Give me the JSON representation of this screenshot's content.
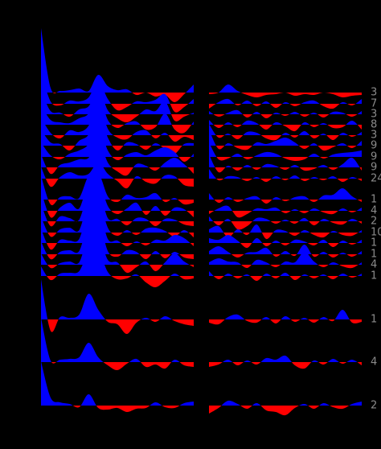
{
  "chart_data": {
    "type": "ridge",
    "colors": {
      "positive": "#0000ff",
      "negative": "#ff0000"
    },
    "rows": [
      {
        "label": 3,
        "left": [
          80,
          6,
          2,
          3,
          5,
          2,
          22,
          8,
          3,
          4,
          -3,
          0,
          -5,
          -3,
          -12,
          -2,
          10
        ],
        "right": [
          -2,
          0,
          10,
          2,
          -3,
          -6,
          -3,
          -2,
          0,
          -4,
          -2,
          -3,
          0,
          -2,
          -6,
          -4,
          -3
        ]
      },
      {
        "label": 7,
        "left": [
          40,
          3,
          -2,
          4,
          3,
          8,
          28,
          6,
          -8,
          -4,
          3,
          2,
          5,
          12,
          -10,
          -4,
          6
        ],
        "right": [
          -6,
          2,
          6,
          -2,
          4,
          -3,
          3,
          -5,
          2,
          -3,
          2,
          4,
          -3,
          -6,
          2,
          -2,
          6
        ]
      },
      {
        "label": 3,
        "left": [
          30,
          4,
          2,
          -3,
          6,
          10,
          32,
          5,
          -5,
          -10,
          -3,
          6,
          4,
          16,
          -8,
          -3,
          2
        ],
        "right": [
          4,
          -3,
          2,
          5,
          -4,
          3,
          -5,
          2,
          -2,
          3,
          -3,
          2,
          -4,
          3,
          2,
          -3,
          4
        ]
      },
      {
        "label": 8,
        "left": [
          25,
          6,
          3,
          2,
          8,
          14,
          38,
          6,
          -4,
          2,
          4,
          -6,
          -3,
          14,
          -6,
          -10,
          4
        ],
        "right": [
          6,
          -4,
          3,
          -3,
          5,
          2,
          -6,
          3,
          -2,
          -8,
          3,
          -3,
          2,
          -4,
          -3,
          5,
          -6
        ]
      },
      {
        "label": 3,
        "left": [
          22,
          3,
          -4,
          6,
          4,
          12,
          42,
          8,
          -3,
          -5,
          4,
          6,
          -4,
          3,
          -8,
          -2,
          -6
        ],
        "right": [
          14,
          -3,
          2,
          -5,
          4,
          3,
          -4,
          -6,
          3,
          -3,
          5,
          -4,
          2,
          -6,
          3,
          -2,
          4
        ]
      },
      {
        "label": 9,
        "left": [
          20,
          4,
          2,
          -6,
          6,
          14,
          44,
          10,
          -6,
          4,
          2,
          -5,
          3,
          -4,
          -10,
          2,
          3
        ],
        "right": [
          20,
          -4,
          3,
          -3,
          -5,
          4,
          2,
          6,
          10,
          4,
          -4,
          3,
          -6,
          -2,
          3,
          -3,
          6
        ]
      },
      {
        "label": 9,
        "left": [
          18,
          2,
          -3,
          4,
          8,
          16,
          40,
          8,
          -4,
          3,
          6,
          2,
          8,
          12,
          6,
          -6,
          4
        ],
        "right": [
          18,
          -3,
          -2,
          4,
          -3,
          2,
          6,
          4,
          -2,
          -5,
          -3,
          4,
          -2,
          3,
          5,
          6,
          8
        ]
      },
      {
        "label": 9,
        "left": [
          16,
          -8,
          3,
          6,
          10,
          12,
          34,
          6,
          -5,
          -10,
          4,
          2,
          -4,
          6,
          12,
          4,
          -8
        ],
        "right": [
          16,
          -6,
          2,
          -4,
          3,
          -3,
          4,
          2,
          -3,
          3,
          -4,
          -2,
          3,
          -3,
          4,
          12,
          -4
        ]
      },
      {
        "label": 24,
        "left": [
          15,
          -10,
          2,
          8,
          4,
          6,
          20,
          6,
          -3,
          -12,
          3,
          -4,
          -6,
          4,
          3,
          -8,
          -10
        ],
        "right": [
          12,
          -2,
          3,
          2,
          -3,
          2,
          -4,
          3,
          -2,
          4,
          -3,
          2,
          -2,
          3,
          -4,
          2,
          -3
        ]
      },
      {
        "label": 1,
        "left": [
          30,
          -6,
          3,
          4,
          2,
          30,
          34,
          4,
          -3,
          6,
          2,
          3,
          8,
          -3,
          2,
          -6,
          -4
        ],
        "right": [
          8,
          -4,
          3,
          -3,
          2,
          4,
          -5,
          3,
          -2,
          3,
          4,
          -3,
          5,
          6,
          14,
          4,
          -3
        ]
      },
      {
        "label": 4,
        "left": [
          25,
          -8,
          4,
          10,
          3,
          36,
          40,
          6,
          -4,
          3,
          10,
          -5,
          6,
          -6,
          4,
          2,
          -8
        ],
        "right": [
          -4,
          3,
          6,
          -8,
          -4,
          3,
          2,
          4,
          -3,
          2,
          -3,
          3,
          -2,
          -4,
          3,
          -2,
          4
        ]
      },
      {
        "label": 2,
        "left": [
          22,
          -6,
          6,
          4,
          2,
          38,
          42,
          4,
          3,
          -5,
          4,
          3,
          -6,
          3,
          2,
          -4,
          -6
        ],
        "right": [
          6,
          -5,
          3,
          -10,
          -6,
          4,
          3,
          -3,
          2,
          -3,
          4,
          -5,
          3,
          -2,
          -4,
          3,
          -3
        ]
      },
      {
        "label": 10,
        "left": [
          20,
          -5,
          4,
          6,
          3,
          40,
          44,
          6,
          -4,
          3,
          -3,
          5,
          6,
          2,
          -5,
          3,
          -6
        ],
        "right": [
          4,
          8,
          -6,
          4,
          -3,
          10,
          -8,
          3,
          2,
          -4,
          3,
          -3,
          -6,
          2,
          -3,
          -4,
          3
        ]
      },
      {
        "label": 1,
        "left": [
          18,
          -8,
          4,
          3,
          5,
          42,
          46,
          5,
          3,
          -4,
          2,
          -3,
          4,
          3,
          10,
          6,
          -4
        ],
        "right": [
          6,
          4,
          10,
          3,
          -6,
          6,
          -4,
          3,
          -3,
          4,
          2,
          -3,
          4,
          -5,
          3,
          -2,
          4
        ]
      },
      {
        "label": 1,
        "left": [
          16,
          -6,
          3,
          5,
          4,
          40,
          44,
          4,
          -3,
          5,
          3,
          -6,
          4,
          -5,
          3,
          -4,
          -6
        ],
        "right": [
          4,
          10,
          3,
          -4,
          2,
          3,
          8,
          -3,
          4,
          -2,
          12,
          -3,
          3,
          -4,
          2,
          -3,
          4
        ]
      },
      {
        "label": 4,
        "left": [
          14,
          -4,
          2,
          4,
          3,
          36,
          38,
          6,
          3,
          -10,
          -3,
          4,
          -8,
          3,
          14,
          4,
          -3
        ],
        "right": [
          3,
          8,
          4,
          3,
          -4,
          6,
          3,
          -3,
          4,
          3,
          16,
          4,
          -3,
          3,
          -2,
          -4,
          3
        ]
      },
      {
        "label": 1,
        "left": [
          12,
          -5,
          3,
          4,
          6,
          30,
          32,
          5,
          -4,
          -3,
          2,
          -8,
          -14,
          -6,
          3,
          -4,
          -3
        ],
        "right": [
          6,
          -4,
          3,
          -3,
          2,
          -6,
          3,
          -3,
          4,
          -5,
          2,
          -3,
          2,
          -4,
          3,
          -2,
          3
        ]
      },
      {
        "label": 1,
        "left": [
          50,
          -14,
          3,
          2,
          6,
          32,
          12,
          -3,
          -6,
          -18,
          -4,
          2,
          -3,
          4,
          -2,
          -6,
          -8
        ],
        "right": [
          -4,
          -6,
          3,
          6,
          -2,
          -4,
          3,
          -5,
          4,
          -3,
          2,
          -4,
          3,
          -2,
          12,
          -4,
          -3
        ]
      },
      {
        "label": 4,
        "left": [
          55,
          2,
          3,
          4,
          6,
          24,
          6,
          -4,
          -10,
          -2,
          4,
          -6,
          -3,
          -8,
          3,
          -4,
          -6
        ],
        "right": [
          -6,
          -3,
          3,
          -4,
          2,
          -3,
          5,
          3,
          8,
          -4,
          -8,
          2,
          -3,
          4,
          -2,
          3,
          -4
        ]
      },
      {
        "label": 2,
        "left": [
          55,
          10,
          4,
          2,
          -2,
          14,
          -3,
          -5,
          -3,
          -8,
          -4,
          -3,
          4,
          -2,
          -3,
          3,
          5
        ],
        "right": [
          -10,
          -3,
          6,
          2,
          -4,
          3,
          -6,
          -8,
          -12,
          -3,
          2,
          -4,
          3,
          -2,
          -4,
          2,
          5
        ]
      }
    ]
  }
}
